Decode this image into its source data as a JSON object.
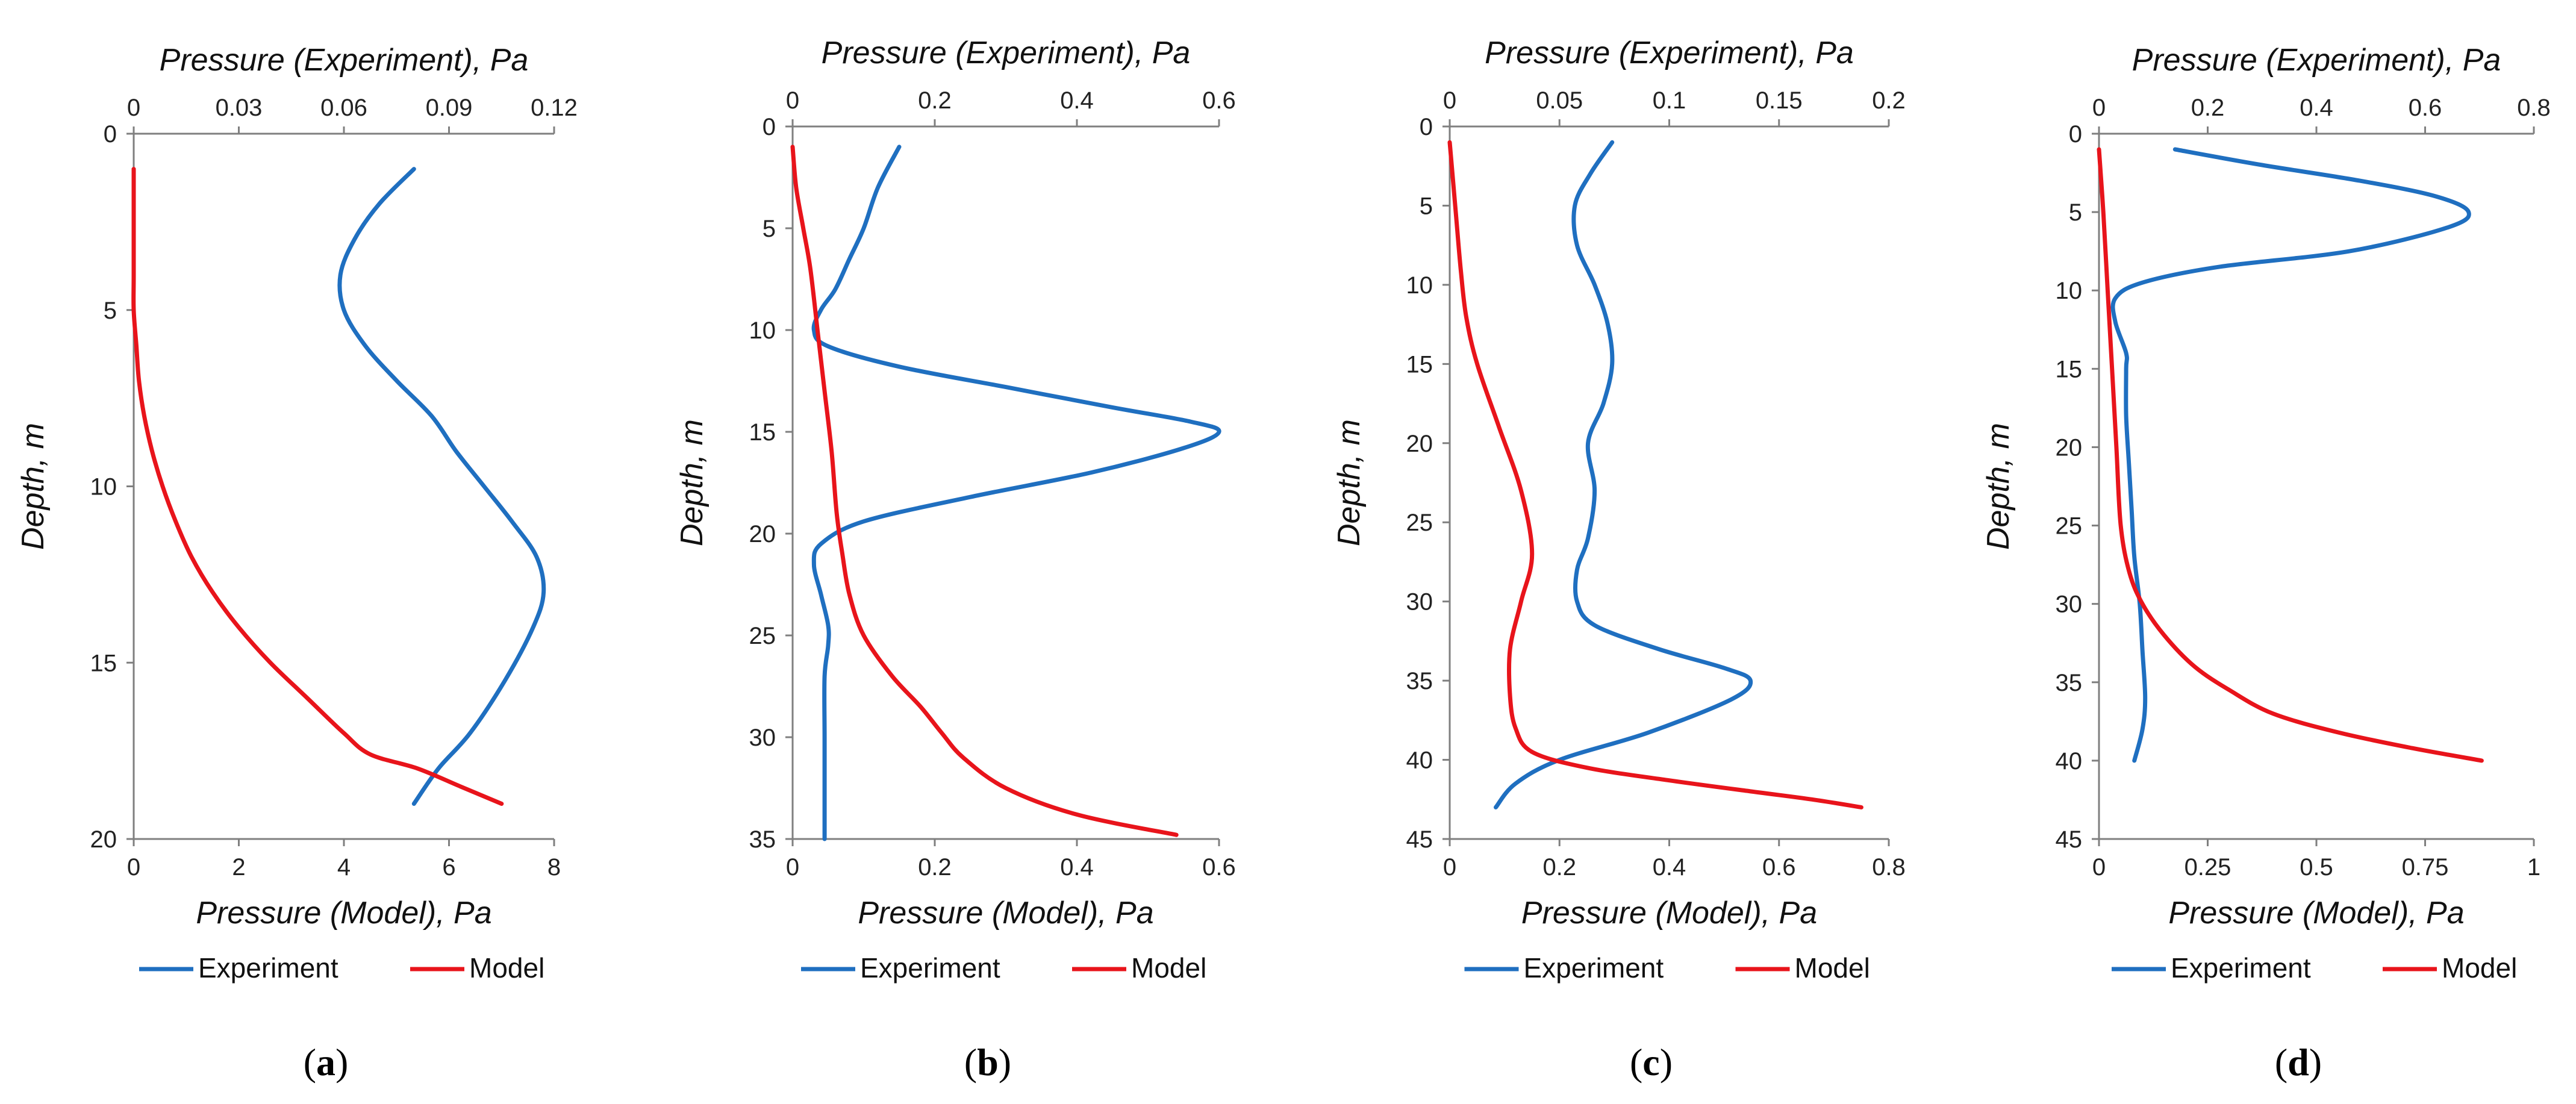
{
  "chart_data": [
    {
      "type": "line",
      "panel_label": "a",
      "title": "",
      "top_axis_label": "Pressure (Experiment), Pa",
      "bottom_axis_label": "Pressure (Model), Pa",
      "ylabel": "Depth, m",
      "top_xlim": [
        0,
        0.12
      ],
      "top_ticks": [
        "0",
        "0.03",
        "0.06",
        "0.09",
        "0.12"
      ],
      "bottom_xlim": [
        0,
        8
      ],
      "bottom_ticks": [
        "0",
        "2",
        "4",
        "6",
        "8"
      ],
      "ylim": [
        0,
        20
      ],
      "y_ticks": [
        "0",
        "5",
        "10",
        "15",
        "20"
      ],
      "grid": false,
      "legend": [
        "Experiment",
        "Model"
      ],
      "legend_position": "bottom",
      "series": [
        {
          "name": "Experiment",
          "axis": "top",
          "color": "#1f6fc0",
          "x": [
            0.08,
            0.07,
            0.063,
            0.059,
            0.06,
            0.066,
            0.075,
            0.085,
            0.092,
            0.1,
            0.108,
            0.115,
            0.117,
            0.114,
            0.106,
            0.096,
            0.087,
            0.08
          ],
          "y": [
            1,
            2,
            3,
            4,
            5,
            6,
            7,
            8,
            9,
            10,
            11,
            12,
            13,
            14,
            15.5,
            17,
            18,
            19
          ]
        },
        {
          "name": "Model",
          "axis": "bottom",
          "color": "#e8141b",
          "x": [
            0,
            0,
            0,
            0,
            0.05,
            0.1,
            0.2,
            0.35,
            0.55,
            0.8,
            1.1,
            1.5,
            2.0,
            2.6,
            3.3,
            4.0,
            4.5,
            5.4,
            6.2,
            7.0
          ],
          "y": [
            1,
            2,
            4,
            5,
            6,
            7,
            8,
            9,
            10,
            11,
            12,
            13,
            14,
            15,
            16,
            17,
            17.6,
            18,
            18.5,
            19
          ]
        }
      ]
    },
    {
      "type": "line",
      "panel_label": "b",
      "title": "",
      "top_axis_label": "Pressure (Experiment), Pa",
      "bottom_axis_label": "Pressure (Model), Pa",
      "ylabel": "Depth, m",
      "top_xlim": [
        0,
        0.6
      ],
      "top_ticks": [
        "0",
        "0.2",
        "0.4",
        "0.6"
      ],
      "bottom_xlim": [
        0,
        0.6
      ],
      "bottom_ticks": [
        "0",
        "0.2",
        "0.4",
        "0.6"
      ],
      "ylim": [
        0,
        35
      ],
      "y_ticks": [
        "0",
        "5",
        "10",
        "15",
        "20",
        "25",
        "30",
        "35"
      ],
      "grid": false,
      "legend": [
        "Experiment",
        "Model"
      ],
      "legend_position": "bottom",
      "series": [
        {
          "name": "Experiment",
          "axis": "top",
          "color": "#1f6fc0",
          "x": [
            0.15,
            0.12,
            0.1,
            0.08,
            0.06,
            0.04,
            0.03,
            0.05,
            0.15,
            0.3,
            0.45,
            0.56,
            0.6,
            0.55,
            0.42,
            0.25,
            0.1,
            0.04,
            0.03,
            0.04,
            0.05,
            0.05,
            0.045,
            0.045,
            0.045,
            0.045
          ],
          "y": [
            1,
            3,
            5,
            6.5,
            8,
            9,
            10,
            10.8,
            11.8,
            12.8,
            13.8,
            14.5,
            15,
            15.8,
            17,
            18.2,
            19.4,
            20.5,
            21.5,
            23,
            24.5,
            25.5,
            27,
            30,
            33,
            35
          ]
        },
        {
          "name": "Model",
          "axis": "bottom",
          "color": "#e8141b",
          "x": [
            0.0,
            0.005,
            0.015,
            0.025,
            0.035,
            0.045,
            0.055,
            0.062,
            0.07,
            0.08,
            0.1,
            0.14,
            0.18,
            0.21,
            0.24,
            0.3,
            0.4,
            0.54
          ],
          "y": [
            1,
            3,
            5,
            7,
            10,
            13,
            16,
            19,
            21,
            23,
            25,
            27,
            28.5,
            29.8,
            31,
            32.5,
            33.8,
            34.8
          ]
        }
      ]
    },
    {
      "type": "line",
      "panel_label": "c",
      "title": "",
      "top_axis_label": "Pressure (Experiment), Pa",
      "bottom_axis_label": "Pressure (Model), Pa",
      "ylabel": "Depth, m",
      "top_xlim": [
        0,
        0.2
      ],
      "top_ticks": [
        "0",
        "0.05",
        "0.1",
        "0.15",
        "0.2"
      ],
      "bottom_xlim": [
        0,
        0.8
      ],
      "bottom_ticks": [
        "0",
        "0.2",
        "0.4",
        "0.6",
        "0.8"
      ],
      "ylim": [
        0,
        45
      ],
      "y_ticks": [
        "0",
        "5",
        "10",
        "15",
        "20",
        "25",
        "30",
        "35",
        "40",
        "45"
      ],
      "grid": false,
      "legend": [
        "Experiment",
        "Model"
      ],
      "legend_position": "bottom",
      "series": [
        {
          "name": "Experiment",
          "axis": "top",
          "color": "#1f6fc0",
          "x": [
            0.074,
            0.064,
            0.057,
            0.058,
            0.066,
            0.072,
            0.074,
            0.07,
            0.063,
            0.066,
            0.063,
            0.058,
            0.058,
            0.066,
            0.095,
            0.125,
            0.137,
            0.128,
            0.09,
            0.05,
            0.03,
            0.021
          ],
          "y": [
            1,
            3,
            5,
            7.5,
            10,
            12.5,
            15,
            17.5,
            20,
            23,
            26,
            28,
            30,
            31.5,
            33,
            34.2,
            35,
            36.2,
            38.3,
            40,
            41.5,
            43
          ]
        },
        {
          "name": "Model",
          "axis": "bottom",
          "color": "#e8141b",
          "x": [
            0.0,
            0.01,
            0.02,
            0.03,
            0.05,
            0.09,
            0.13,
            0.15,
            0.13,
            0.11,
            0.11,
            0.12,
            0.15,
            0.25,
            0.4,
            0.55,
            0.66,
            0.75
          ],
          "y": [
            1,
            5,
            9,
            12,
            15,
            19,
            23,
            27,
            30,
            33,
            36,
            38,
            39.5,
            40.5,
            41.3,
            42,
            42.5,
            43
          ]
        }
      ]
    },
    {
      "type": "line",
      "panel_label": "d",
      "title": "",
      "top_axis_label": "Pressure (Experiment), Pa",
      "bottom_axis_label": "Pressure (Model), Pa",
      "ylabel": "Depth, m",
      "top_xlim": [
        0,
        0.8
      ],
      "top_ticks": [
        "0",
        "0.2",
        "0.4",
        "0.6",
        "0.8"
      ],
      "bottom_xlim": [
        0,
        1
      ],
      "bottom_ticks": [
        "0",
        "0.25",
        "0.5",
        "0.75",
        "1"
      ],
      "ylim": [
        0,
        45
      ],
      "y_ticks": [
        "0",
        "5",
        "10",
        "15",
        "20",
        "25",
        "30",
        "35",
        "40",
        "45"
      ],
      "grid": false,
      "legend": [
        "Experiment",
        "Model"
      ],
      "legend_position": "bottom",
      "series": [
        {
          "name": "Experiment",
          "axis": "top",
          "color": "#1f6fc0",
          "x": [
            0.14,
            0.3,
            0.48,
            0.62,
            0.68,
            0.64,
            0.46,
            0.22,
            0.08,
            0.03,
            0.03,
            0.05,
            0.05,
            0.05,
            0.055,
            0.06,
            0.065,
            0.075,
            0.08,
            0.085,
            0.08,
            0.065
          ],
          "y": [
            1,
            2,
            3,
            4,
            5,
            6,
            7.5,
            8.5,
            9.5,
            10.5,
            12,
            14,
            15,
            18,
            21,
            24,
            27,
            30,
            33,
            36,
            38,
            40
          ]
        },
        {
          "name": "Model",
          "axis": "bottom",
          "color": "#e8141b",
          "x": [
            0.0,
            0.01,
            0.02,
            0.03,
            0.04,
            0.05,
            0.07,
            0.1,
            0.15,
            0.22,
            0.3,
            0.4,
            0.55,
            0.72,
            0.88
          ],
          "y": [
            1,
            5,
            10,
            15,
            20,
            25,
            28,
            30,
            32,
            34,
            35.5,
            37,
            38.2,
            39.2,
            40
          ]
        }
      ]
    }
  ]
}
